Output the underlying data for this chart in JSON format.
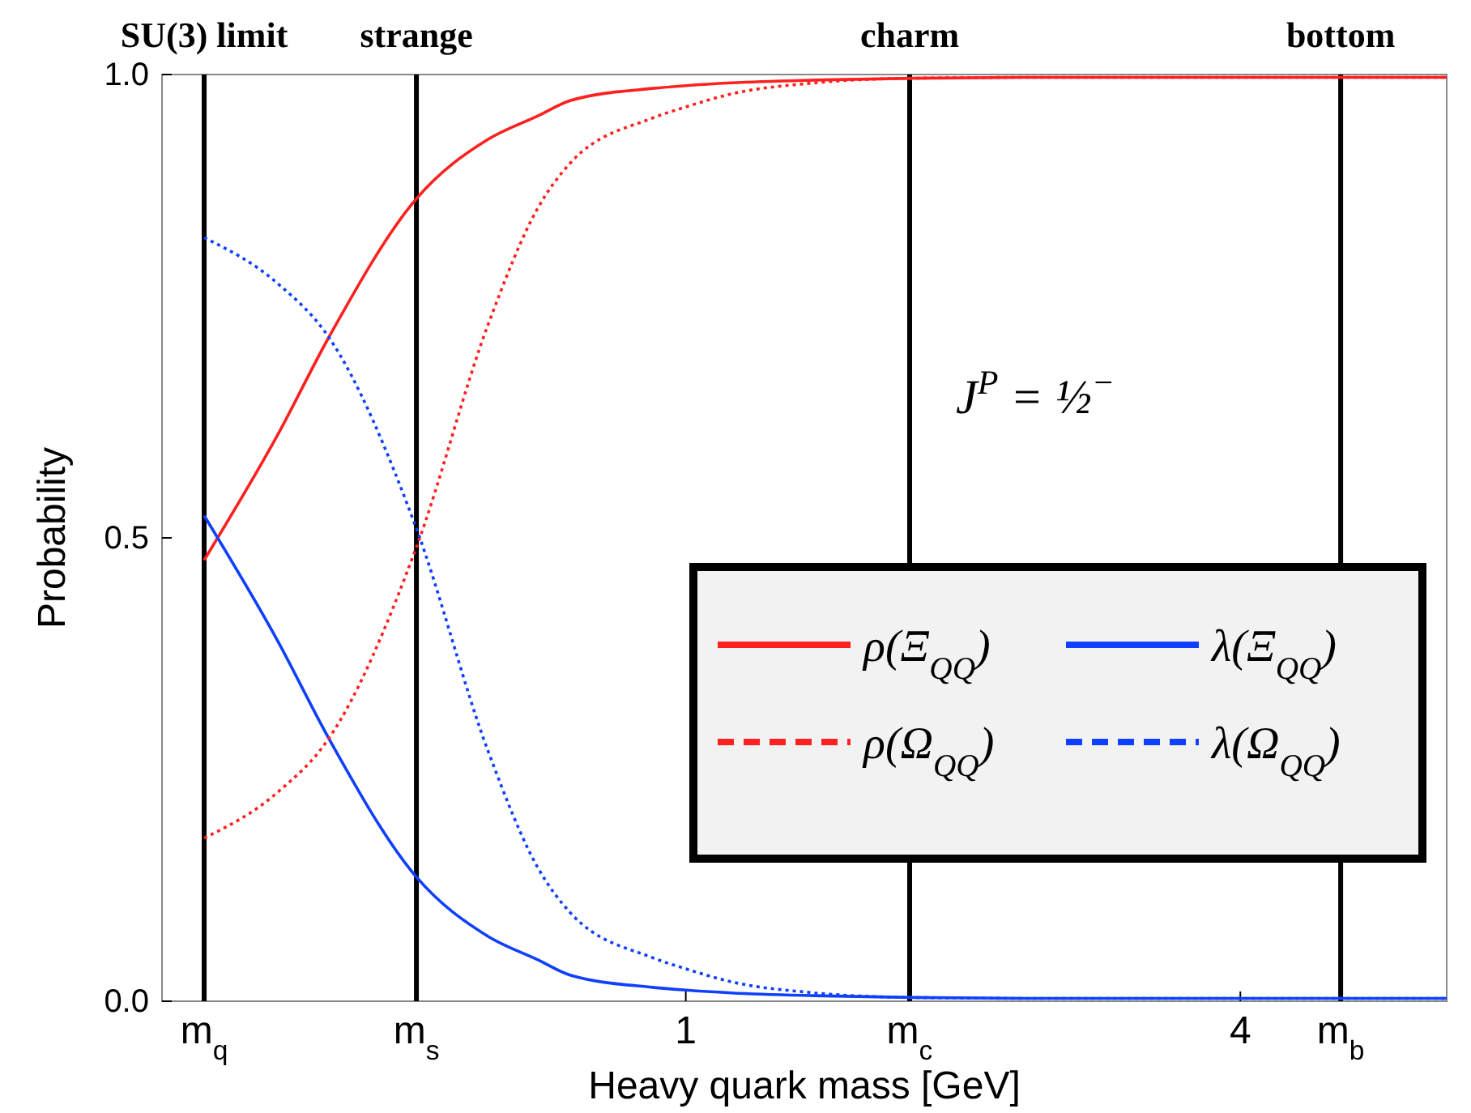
{
  "chart_data": {
    "type": "line",
    "xlabel": "Heavy quark mass [GeV]",
    "ylabel": "Probability",
    "log": "x",
    "xlim": [
      0.27,
      6.7
    ],
    "ylim": [
      0,
      1
    ],
    "xticks": [
      {
        "value": 0.3,
        "label": "m$_{q}$"
      },
      {
        "value": 0.51,
        "label": "m$_{s}$"
      },
      1,
      {
        "value": 1.75,
        "label": "m$_{c}$"
      },
      4,
      {
        "value": 5.14,
        "label": "m$_{b}$"
      }
    ],
    "yticks": [
      {
        "value": 0,
        "label": "0.0"
      },
      0.5,
      {
        "value": 1,
        "label": "1.0"
      }
    ],
    "x": [
      0.3,
      0.36,
      0.41,
      0.51,
      0.61,
      0.69,
      0.75,
      0.92,
      1,
      1.12,
      1.38,
      1.76,
      2.52,
      5.14,
      6.7
    ],
    "series": [
      {
        "name": "ρ(Ξ$_{QQ}$)",
        "color": "#ff2020",
        "line_style": "solid",
        "values": [
          0.476,
          0.61,
          0.717,
          0.866,
          0.93,
          0.955,
          0.972,
          0.985,
          0.988,
          0.991,
          0.994,
          0.996,
          0.997,
          0.997,
          0.997
        ]
      },
      {
        "name": "λ(Ξ$_{QQ}$)",
        "color": "#1040ff",
        "line_style": "solid",
        "values": [
          0.524,
          0.39,
          0.283,
          0.134,
          0.07,
          0.045,
          0.028,
          0.015,
          0.012,
          0.009,
          0.006,
          0.004,
          0.003,
          0.003,
          0.003
        ]
      },
      {
        "name": "ρ(Ω$_{QQ}$)",
        "color": "#ff2020",
        "line_style": "dotted",
        "values": [
          0.176,
          0.225,
          0.284,
          0.49,
          0.73,
          0.855,
          0.905,
          0.953,
          0.965,
          0.979,
          0.991,
          0.996,
          0.997,
          0.997,
          0.997
        ]
      },
      {
        "name": "λ(Ω$_{QQ}$)",
        "color": "#1040ff",
        "line_style": "dotted",
        "values": [
          0.824,
          0.775,
          0.716,
          0.51,
          0.27,
          0.145,
          0.095,
          0.047,
          0.035,
          0.021,
          0.009,
          0.004,
          0.003,
          0.003,
          0.003
        ]
      }
    ],
    "ref_lines": [
      {
        "axis": "x",
        "value": 0.3,
        "label": "SU(3) limit"
      },
      {
        "axis": "x",
        "value": 0.51,
        "label": "strange"
      },
      {
        "axis": "x",
        "value": 1.75,
        "label": "charm"
      },
      {
        "axis": "x",
        "value": 5.14,
        "label": "bottom"
      }
    ],
    "annotations": [
      "J$^{P}$ = ½$^{−}$"
    ],
    "legend": "bottom right",
    "grid": false
  }
}
